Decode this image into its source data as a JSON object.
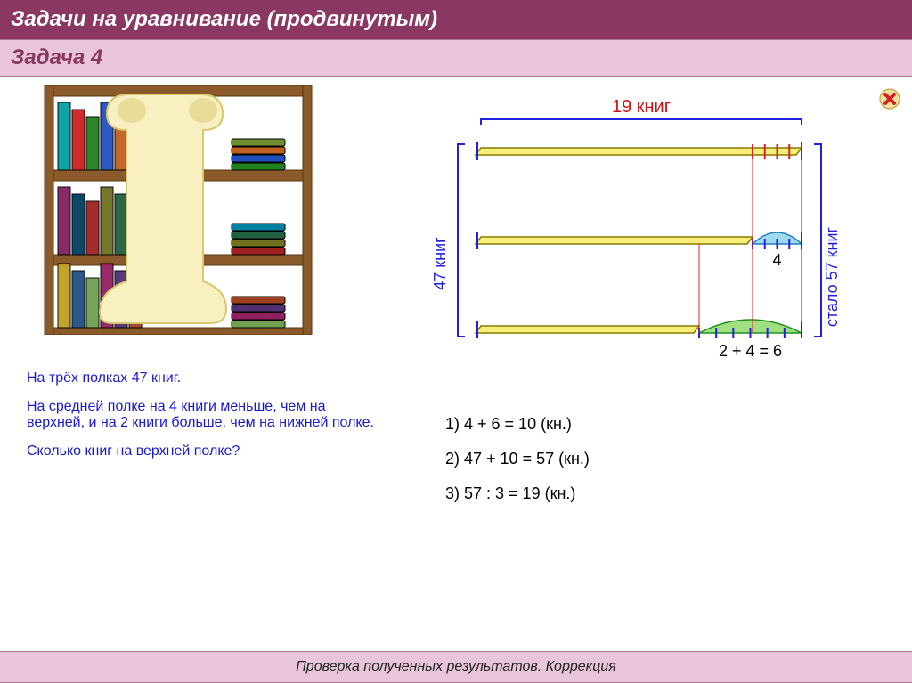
{
  "header": {
    "title1": "Задачи на уравнивание (продвинутым)",
    "title2": "Задача 4"
  },
  "problem": {
    "line1": "На трёх полках 47 книг.",
    "line2": "На средней полке на 4 книги меньше, чем на верхней,  и на 2 книги больше, чем на нижней полке.",
    "line3": "Сколько книг на верхней полке?"
  },
  "diagram": {
    "top_label": "19 книг",
    "left_label": "47 книг",
    "right_label": "стало 57 книг",
    "middle_label": "4",
    "bottom_label": "2  +  4  =  6",
    "colors": {
      "bar_fill": "#f5ee7a",
      "bar_stroke": "#8a7a00",
      "bracket": "#2020e0",
      "top_text": "#d01010",
      "middle_bubble": "#a0d8f0",
      "middle_bubble_stroke": "#2080c0",
      "bottom_bubble": "#a0e080",
      "bottom_bubble_stroke": "#209020",
      "tick_red": "#e02020",
      "tick_blue": "#2020e0",
      "vline": "#e02020"
    }
  },
  "solution": {
    "s1": "1)  4 + 6 = 10 (кн.)",
    "s2": "2)  47 + 10 = 57 (кн.)",
    "s3": "3)  57 : 3 = 19 (кн.)"
  },
  "footer": {
    "text": "Проверка полученных результатов. Коррекция"
  },
  "shelf": {
    "wood": "#8a5a2a",
    "wood_dark": "#5a3510",
    "books_row1": [
      "#00a0a0",
      "#d02020",
      "#208020",
      "#2050c0",
      "#c06020",
      "#709030",
      "#205080"
    ],
    "books_row2": [
      "#802060",
      "#004060",
      "#a02020",
      "#707020",
      "#206040",
      "#0080a0",
      "#c07030"
    ],
    "books_row3": [
      "#c0a020",
      "#205080",
      "#70a050",
      "#902060",
      "#503070",
      "#a04020"
    ],
    "scroll_fill": "#f8f0c0",
    "scroll_edge": "#d8c870"
  }
}
